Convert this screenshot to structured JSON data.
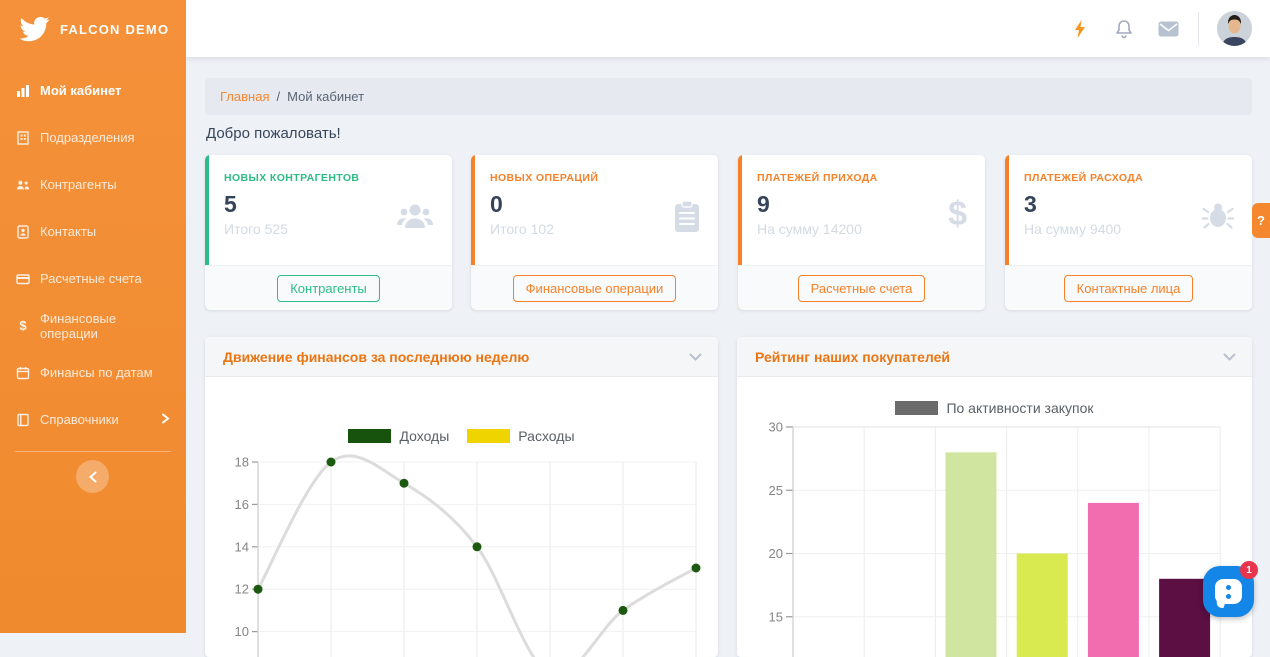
{
  "brand": {
    "name": "FALCON DEMO",
    "logo_icon": "falcon-bird-icon"
  },
  "colors": {
    "sidebar_orange": "#f08b31",
    "accent_orange": "#f5822a",
    "accent_green": "#2dbc86",
    "panel_title_orange": "#ec7512",
    "chat_blue": "#1486e8",
    "badge_red": "#e8354b"
  },
  "sidebar": {
    "items": [
      {
        "label": "Мой кабинет",
        "icon": "chart-bar-icon",
        "active": true
      },
      {
        "label": "Подразделения",
        "icon": "building-icon",
        "active": false
      },
      {
        "label": "Контрагенты",
        "icon": "users-icon",
        "active": false
      },
      {
        "label": "Контакты",
        "icon": "address-book-icon",
        "active": false
      },
      {
        "label": "Расчетные счета",
        "icon": "credit-card-icon",
        "active": false
      },
      {
        "label": "Финансовые операции",
        "icon": "dollar-icon",
        "active": false
      },
      {
        "label": "Финансы по датам",
        "icon": "calendar-icon",
        "active": false
      },
      {
        "label": "Справочники",
        "icon": "book-icon",
        "active": false,
        "trailing_icon": "chevron-right-icon"
      }
    ],
    "collapse_icon": "chevron-left-icon"
  },
  "topbar": {
    "icons": [
      "bolt-icon",
      "bell-icon",
      "mail-icon",
      "user-avatar"
    ]
  },
  "breadcrumb": {
    "home": "Главная",
    "separator": "/",
    "current": "Мой кабинет"
  },
  "welcome": "Добро пожаловать!",
  "cards": [
    {
      "title": "НОВЫХ КОНТРАГЕНТОВ",
      "value": "5",
      "subtitle": "Итого 525",
      "button": "Контрагенты",
      "icon": "users-group-icon",
      "accent": "#2dbc86"
    },
    {
      "title": "НОВЫХ ОПЕРАЦИЙ",
      "value": "0",
      "subtitle": "Итого 102",
      "button": "Финансовые операции",
      "icon": "clipboard-icon",
      "accent": "#f5822a"
    },
    {
      "title": "ПЛАТЕЖЕЙ ПРИХОДА",
      "value": "9",
      "subtitle": "На сумму 14200",
      "button": "Расчетные счета",
      "icon": "dollar-icon",
      "accent": "#f5822a"
    },
    {
      "title": "ПЛАТЕЖЕЙ РАСХОДА",
      "value": "3",
      "subtitle": "На сумму 9400",
      "button": "Контактные лица",
      "icon": "bug-icon",
      "accent": "#f5822a"
    }
  ],
  "panels": [
    {
      "title": "Движение финансов за последнюю неделю",
      "collapse_icon": "chevron-down-icon"
    },
    {
      "title": "Рейтинг наших покупателей",
      "collapse_icon": "chevron-down-icon"
    }
  ],
  "chart_data": [
    {
      "type": "line",
      "title": "Движение финансов за последнюю неделю",
      "legend_position": "top-center",
      "grid": true,
      "x_slots": 7,
      "yticks": [
        18,
        16,
        14,
        12,
        10
      ],
      "ylim_visible": [
        10,
        18
      ],
      "line_color": "#dcdcdc",
      "series": [
        {
          "name": "Доходы",
          "swatch_color": "#17530d",
          "point_color": "#1b5a10",
          "values": [
            12,
            18,
            17,
            14,
            null,
            11,
            13
          ],
          "offscreen_estimate": {
            "index": 4,
            "value": 8
          }
        },
        {
          "name": "Расходы",
          "swatch_color": "#f0d400",
          "point_color": "#f0d400",
          "values": [
            null,
            null,
            null,
            null,
            null,
            null,
            null
          ]
        }
      ]
    },
    {
      "type": "bar",
      "title": "Рейтинг наших покупателей",
      "legend": [
        {
          "name": "По активности закупок",
          "swatch_color": "#6b6b6b"
        }
      ],
      "legend_position": "top-center",
      "grid": true,
      "yticks": [
        30,
        25,
        20,
        15
      ],
      "categories": [
        "",
        "",
        "",
        "",
        "",
        ""
      ],
      "values": [
        null,
        null,
        28,
        20,
        24,
        18
      ],
      "bar_colors": [
        null,
        null,
        "#d0e59f",
        "#d9ea51",
        "#f26cb0",
        "#5c0f43"
      ]
    }
  ],
  "chat": {
    "badge": "1"
  },
  "help_tab": {
    "label": "?"
  }
}
